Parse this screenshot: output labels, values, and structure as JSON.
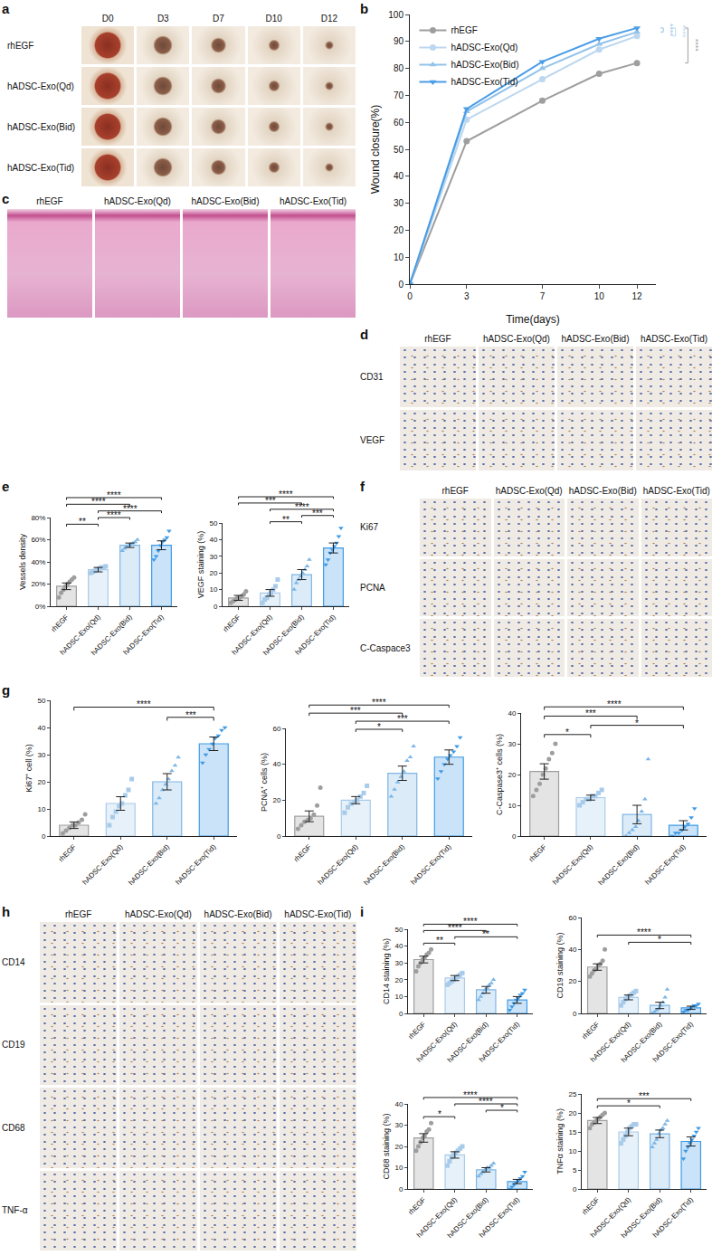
{
  "chart_data": [
    {
      "panel": "b",
      "type": "line",
      "xlabel": "Time(days)",
      "ylabel": "Wound closure(%)",
      "x": [
        0,
        3,
        7,
        10,
        12
      ],
      "xlim": [
        0,
        13
      ],
      "xticks": [
        0,
        3,
        7,
        10,
        12
      ],
      "ylim": [
        0,
        100
      ],
      "yticks": [
        0,
        10,
        20,
        30,
        40,
        50,
        60,
        70,
        80,
        90,
        100
      ],
      "legend": "upper left",
      "series": [
        {
          "name": "rhEGF",
          "color": "#9e9e9e",
          "marker": "circle",
          "values": [
            0,
            53,
            68,
            78,
            82
          ]
        },
        {
          "name": "hADSC-Exo(Qd)",
          "color": "#bcd7ef",
          "marker": "circle",
          "values": [
            0,
            61,
            76,
            87,
            92
          ]
        },
        {
          "name": "hADSC-Exo(Bid)",
          "color": "#93c3ea",
          "marker": "triangle-up",
          "values": [
            0,
            64,
            80,
            89,
            93.5
          ]
        },
        {
          "name": "hADSC-Exo(Tid)",
          "color": "#4a9de6",
          "marker": "triangle-down",
          "values": [
            0,
            65,
            82.5,
            91,
            95
          ]
        }
      ],
      "significance": [
        {
          "from": "hADSC-Exo(Bid)",
          "to": "hADSC-Exo(Tid)",
          "label": "****"
        },
        {
          "from": "hADSC-Exo(Qd)",
          "to": "hADSC-Exo(Tid)",
          "label": "****"
        },
        {
          "from": "rhEGF",
          "to": "hADSC-Exo(Tid)",
          "label": "****"
        }
      ]
    },
    {
      "panel": "e",
      "type": "bar",
      "ylabel": "Vessels density",
      "categories": [
        "rhEGF",
        "hADSC-Exo(Qd)",
        "hADSC-Exo(Bid)",
        "hADSC-Exo(Tid)"
      ],
      "values": [
        18,
        33,
        55,
        55
      ],
      "errors": [
        3,
        2,
        2,
        4
      ],
      "points": [
        [
          8,
          12,
          15,
          18,
          20,
          22,
          24,
          26
        ],
        [
          30,
          31,
          32,
          33,
          34,
          35,
          35,
          36
        ],
        [
          50,
          52,
          54,
          55,
          56,
          57,
          58,
          60
        ],
        [
          42,
          45,
          50,
          55,
          58,
          60,
          62,
          68
        ]
      ],
      "colors": [
        "#9e9e9e",
        "#a9cbea",
        "#7db6e6",
        "#3f9be6"
      ],
      "markers": [
        "circle",
        "square",
        "triangle-up",
        "triangle-down"
      ],
      "ylim": [
        0,
        80
      ],
      "yticks": [
        {
          "value": 0,
          "label": "0%"
        },
        {
          "value": 20,
          "label": "20%"
        },
        {
          "value": 40,
          "label": "40%"
        },
        {
          "value": 60,
          "label": "60%"
        },
        {
          "value": 80,
          "label": "80%"
        }
      ],
      "significance": [
        {
          "from": "rhEGF",
          "to": "hADSC-Exo(Qd)",
          "label": "**"
        },
        {
          "from": "hADSC-Exo(Qd)",
          "to": "hADSC-Exo(Bid)",
          "label": "****"
        },
        {
          "from": "hADSC-Exo(Qd)",
          "to": "hADSC-Exo(Tid)",
          "label": "****"
        },
        {
          "from": "rhEGF",
          "to": "hADSC-Exo(Bid)",
          "label": "****"
        },
        {
          "from": "rhEGF",
          "to": "hADSC-Exo(Tid)",
          "label": "****"
        }
      ]
    },
    {
      "type": "bar",
      "ylabel": "VEGF staining (%)",
      "categories": [
        "rhEGF",
        "hADSC-Exo(Qd)",
        "hADSC-Exo(Bid)",
        "hADSC-Exo(Tid)"
      ],
      "values": [
        5,
        8,
        19,
        35
      ],
      "errors": [
        1.5,
        2,
        3,
        3
      ],
      "points": [
        [
          2,
          3,
          4,
          5,
          5,
          6,
          7,
          9
        ],
        [
          2,
          4,
          5,
          7,
          8,
          10,
          12,
          16
        ],
        [
          10,
          14,
          16,
          18,
          20,
          22,
          24,
          28
        ],
        [
          25,
          28,
          32,
          34,
          36,
          38,
          42,
          47
        ]
      ],
      "colors": [
        "#9e9e9e",
        "#a9cbea",
        "#7db6e6",
        "#3f9be6"
      ],
      "markers": [
        "circle",
        "square",
        "triangle-up",
        "triangle-down"
      ],
      "ylim": [
        0,
        50
      ],
      "yticks": [
        0,
        10,
        20,
        30,
        40,
        50
      ],
      "significance": [
        {
          "from": "hADSC-Exo(Qd)",
          "to": "hADSC-Exo(Bid)",
          "label": "**"
        },
        {
          "from": "hADSC-Exo(Bid)",
          "to": "hADSC-Exo(Tid)",
          "label": "***"
        },
        {
          "from": "hADSC-Exo(Qd)",
          "to": "hADSC-Exo(Tid)",
          "label": "****"
        },
        {
          "from": "rhEGF",
          "to": "hADSC-Exo(Bid)",
          "label": "***"
        },
        {
          "from": "rhEGF",
          "to": "hADSC-Exo(Tid)",
          "label": "****"
        }
      ]
    },
    {
      "panel": "g",
      "type": "bar",
      "ylabel": "Ki67⁺ cell (%)",
      "categories": [
        "rhEGF",
        "hADSC-Exo(Qd)",
        "hADSC-Exo(Bid)",
        "hADSC-Exo(Tid)"
      ],
      "values": [
        4,
        12,
        20,
        34
      ],
      "errors": [
        1.2,
        2.5,
        3,
        2.5
      ],
      "points": [
        [
          1,
          2,
          3,
          4,
          4,
          5,
          6,
          8
        ],
        [
          4,
          7,
          9,
          11,
          12,
          15,
          17,
          21
        ],
        [
          12,
          14,
          17,
          19,
          21,
          24,
          26,
          29
        ],
        [
          27,
          30,
          32,
          34,
          36,
          37,
          39,
          40
        ]
      ],
      "colors": [
        "#9e9e9e",
        "#a9cbea",
        "#7db6e6",
        "#3f9be6"
      ],
      "markers": [
        "circle",
        "square",
        "triangle-up",
        "triangle-down"
      ],
      "ylim": [
        0,
        50
      ],
      "yticks": [
        0,
        10,
        20,
        30,
        40,
        50
      ],
      "significance": [
        {
          "from": "hADSC-Exo(Bid)",
          "to": "hADSC-Exo(Tid)",
          "label": "***"
        },
        {
          "from": "rhEGF",
          "to": "hADSC-Exo(Tid)",
          "label": "****"
        }
      ]
    },
    {
      "type": "bar",
      "ylabel": "PCNA⁺ cells (%)",
      "categories": [
        "rhEGF",
        "hADSC-Exo(Qd)",
        "hADSC-Exo(Bid)",
        "hADSC-Exo(Tid)"
      ],
      "values": [
        11,
        20,
        35,
        44
      ],
      "errors": [
        3,
        2,
        4,
        4
      ],
      "points": [
        [
          4,
          6,
          8,
          9,
          10,
          12,
          17,
          27
        ],
        [
          13,
          16,
          18,
          19,
          20,
          22,
          24,
          28
        ],
        [
          22,
          26,
          30,
          33,
          36,
          42,
          44,
          50
        ],
        [
          32,
          36,
          40,
          43,
          45,
          47,
          50,
          55
        ]
      ],
      "colors": [
        "#9e9e9e",
        "#a9cbea",
        "#7db6e6",
        "#3f9be6"
      ],
      "markers": [
        "circle",
        "square",
        "triangle-up",
        "triangle-down"
      ],
      "ylim": [
        0,
        60
      ],
      "yticks": [
        0,
        20,
        40,
        60
      ],
      "significance": [
        {
          "from": "hADSC-Exo(Qd)",
          "to": "hADSC-Exo(Bid)",
          "label": "*"
        },
        {
          "from": "hADSC-Exo(Qd)",
          "to": "hADSC-Exo(Tid)",
          "label": "***"
        },
        {
          "from": "rhEGF",
          "to": "hADSC-Exo(Bid)",
          "label": "***"
        },
        {
          "from": "rhEGF",
          "to": "hADSC-Exo(Tid)",
          "label": "****"
        }
      ]
    },
    {
      "type": "bar",
      "ylabel": "C-Caspase3⁺ cells (%)",
      "categories": [
        "rhEGF",
        "hADSC-Exo(Qd)",
        "hADSC-Exo(Bid)",
        "hADSC-Exo(Tid)"
      ],
      "values": [
        21,
        12.5,
        7,
        3.5
      ],
      "errors": [
        2.5,
        0.8,
        3,
        1.5
      ],
      "points": [
        [
          13,
          15,
          17,
          20,
          22,
          25,
          27,
          30
        ],
        [
          10,
          11,
          12,
          12,
          13,
          13,
          14,
          15
        ],
        [
          0,
          1,
          2,
          3,
          5,
          8,
          12,
          25
        ],
        [
          0,
          1,
          1,
          2,
          3,
          4,
          6,
          9
        ]
      ],
      "colors": [
        "#9e9e9e",
        "#a9cbea",
        "#7db6e6",
        "#3f9be6"
      ],
      "markers": [
        "circle",
        "square",
        "triangle-up",
        "triangle-down"
      ],
      "ylim": [
        0,
        40
      ],
      "yticks": [
        0,
        10,
        20,
        30,
        40
      ],
      "significance": [
        {
          "from": "rhEGF",
          "to": "hADSC-Exo(Qd)",
          "label": "*"
        },
        {
          "from": "hADSC-Exo(Qd)",
          "to": "hADSC-Exo(Tid)",
          "label": "*"
        },
        {
          "from": "rhEGF",
          "to": "hADSC-Exo(Bid)",
          "label": "***"
        },
        {
          "from": "rhEGF",
          "to": "hADSC-Exo(Tid)",
          "label": "****"
        }
      ]
    },
    {
      "panel": "i",
      "type": "bar",
      "ylabel": "CD14 staining (%)",
      "categories": [
        "rhEGF",
        "hADSC-Exo(Qd)",
        "hADSC-Exo(Bid)",
        "hADSC-Exo(Tid)"
      ],
      "values": [
        32,
        21,
        14,
        8
      ],
      "errors": [
        2,
        1.5,
        2,
        2
      ],
      "points": [
        [
          25,
          28,
          30,
          32,
          33,
          35,
          36,
          38
        ],
        [
          17,
          18,
          19,
          20,
          21,
          22,
          23,
          24
        ],
        [
          8,
          10,
          12,
          14,
          15,
          17,
          18,
          20
        ],
        [
          2,
          4,
          6,
          8,
          9,
          11,
          12,
          14
        ]
      ],
      "colors": [
        "#9e9e9e",
        "#a9cbea",
        "#7db6e6",
        "#3f9be6"
      ],
      "markers": [
        "circle",
        "square",
        "triangle-up",
        "triangle-down"
      ],
      "ylim": [
        0,
        50
      ],
      "yticks": [
        0,
        10,
        20,
        30,
        40,
        50
      ],
      "significance": [
        {
          "from": "rhEGF",
          "to": "hADSC-Exo(Qd)",
          "label": "**"
        },
        {
          "from": "hADSC-Exo(Qd)",
          "to": "hADSC-Exo(Tid)",
          "label": "**"
        },
        {
          "from": "rhEGF",
          "to": "hADSC-Exo(Bid)",
          "label": "****"
        },
        {
          "from": "rhEGF",
          "to": "hADSC-Exo(Tid)",
          "label": "****"
        }
      ]
    },
    {
      "type": "bar",
      "ylabel": "CD19 staining (%)",
      "categories": [
        "rhEGF",
        "hADSC-Exo(Qd)",
        "hADSC-Exo(Bid)",
        "hADSC-Exo(Tid)"
      ],
      "values": [
        29,
        10,
        5,
        3.5
      ],
      "errors": [
        2,
        1.5,
        2,
        1
      ],
      "points": [
        [
          23,
          25,
          27,
          28,
          30,
          31,
          33,
          40
        ],
        [
          5,
          7,
          9,
          10,
          11,
          12,
          13,
          14
        ],
        [
          0,
          1,
          2,
          3,
          5,
          7,
          10,
          15
        ],
        [
          1,
          2,
          2,
          3,
          4,
          5,
          5,
          6
        ]
      ],
      "colors": [
        "#9e9e9e",
        "#a9cbea",
        "#7db6e6",
        "#3f9be6"
      ],
      "markers": [
        "circle",
        "square",
        "triangle-up",
        "triangle-down"
      ],
      "ylim": [
        0,
        60
      ],
      "yticks": [
        0,
        20,
        40,
        60
      ],
      "significance": [
        {
          "from": "hADSC-Exo(Qd)",
          "to": "hADSC-Exo(Tid)",
          "label": "*"
        },
        {
          "from": "rhEGF",
          "to": "hADSC-Exo(Tid)",
          "label": "****"
        }
      ]
    },
    {
      "type": "bar",
      "ylabel": "CD68 staining (%)",
      "categories": [
        "rhEGF",
        "hADSC-Exo(Qd)",
        "hADSC-Exo(Bid)",
        "hADSC-Exo(Tid)"
      ],
      "values": [
        24,
        16,
        9,
        3.5
      ],
      "errors": [
        2,
        1.5,
        1,
        1
      ],
      "points": [
        [
          18,
          20,
          22,
          24,
          25,
          27,
          28,
          31
        ],
        [
          11,
          13,
          15,
          16,
          17,
          18,
          19,
          20
        ],
        [
          6,
          7,
          8,
          9,
          10,
          10,
          11,
          12
        ],
        [
          0,
          1,
          2,
          3,
          4,
          5,
          6,
          8
        ]
      ],
      "colors": [
        "#9e9e9e",
        "#a9cbea",
        "#7db6e6",
        "#3f9be6"
      ],
      "markers": [
        "circle",
        "square",
        "triangle-up",
        "triangle-down"
      ],
      "ylim": [
        0,
        40
      ],
      "yticks": [
        0,
        10,
        20,
        30,
        40
      ],
      "significance": [
        {
          "from": "rhEGF",
          "to": "hADSC-Exo(Qd)",
          "label": "*"
        },
        {
          "from": "hADSC-Exo(Bid)",
          "to": "hADSC-Exo(Tid)",
          "label": "*"
        },
        {
          "from": "hADSC-Exo(Qd)",
          "to": "hADSC-Exo(Tid)",
          "label": "****"
        },
        {
          "from": "rhEGF",
          "to": "hADSC-Exo(Tid)",
          "label": "****"
        }
      ]
    },
    {
      "type": "bar",
      "ylabel": "TNFα staining (%)",
      "categories": [
        "rhEGF",
        "hADSC-Exo(Qd)",
        "hADSC-Exo(Bid)",
        "hADSC-Exo(Tid)"
      ],
      "values": [
        18,
        15,
        14.5,
        12.5
      ],
      "errors": [
        0.8,
        1,
        1,
        1.2
      ],
      "points": [
        [
          16,
          17,
          17.5,
          18,
          18.5,
          19,
          19.5,
          20
        ],
        [
          12,
          13,
          14,
          15,
          16,
          16.5,
          17,
          17
        ],
        [
          11,
          12,
          13,
          14.5,
          15.5,
          16,
          17,
          18
        ],
        [
          8,
          10,
          11,
          12,
          13,
          14,
          15,
          16
        ]
      ],
      "colors": [
        "#9e9e9e",
        "#a9cbea",
        "#7db6e6",
        "#3f9be6"
      ],
      "markers": [
        "circle",
        "square",
        "triangle-up",
        "triangle-down"
      ],
      "ylim": [
        0,
        25
      ],
      "yticks": [
        0,
        5,
        10,
        15,
        20,
        25
      ],
      "significance": [
        {
          "from": "rhEGF",
          "to": "hADSC-Exo(Bid)",
          "label": "*"
        },
        {
          "from": "rhEGF",
          "to": "hADSC-Exo(Tid)",
          "label": "***"
        }
      ]
    }
  ],
  "image_panels": [
    {
      "panel": "a",
      "columns": [
        "D0",
        "D3",
        "D7",
        "D10",
        "D12"
      ],
      "rows": [
        "rhEGF",
        "hADSC-Exo(Qd)",
        "hADSC-Exo(Bid)",
        "hADSC-Exo(Tid)"
      ]
    },
    {
      "panel": "c",
      "columns": [
        "rhEGF",
        "hADSC-Exo(Qd)",
        "hADSC-Exo(Bid)",
        "hADSC-Exo(Tid)"
      ]
    },
    {
      "panel": "d",
      "columns": [
        "rhEGF",
        "hADSC-Exo(Qd)",
        "hADSC-Exo(Bid)",
        "hADSC-Exo(Tid)"
      ],
      "rows": [
        "CD31",
        "VEGF"
      ]
    },
    {
      "panel": "f",
      "columns": [
        "rhEGF",
        "hADSC-Exo(Qd)",
        "hADSC-Exo(Bid)",
        "hADSC-Exo(Tid)"
      ],
      "rows": [
        "Ki67",
        "PCNA",
        "C-Caspace3"
      ]
    },
    {
      "panel": "h",
      "columns": [
        "rhEGF",
        "hADSC-Exo(Qd)",
        "hADSC-Exo(Bid)",
        "hADSC-Exo(Tid)"
      ],
      "rows": [
        "CD14",
        "CD19",
        "CD68",
        "TNF-α"
      ]
    }
  ]
}
